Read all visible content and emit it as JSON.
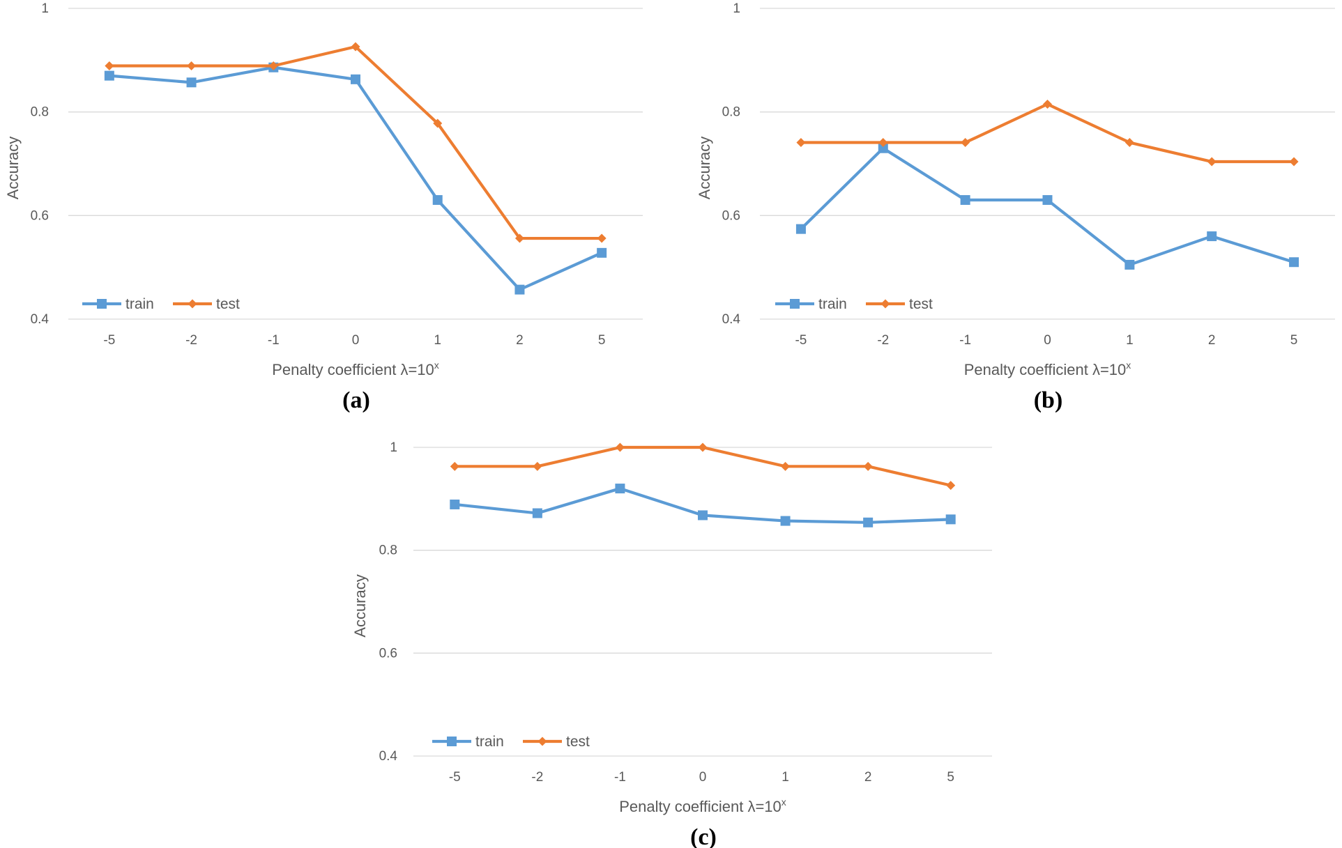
{
  "chart_data": [
    {
      "type": "line",
      "panel_label": "(a)",
      "xlabel": "Penalty coefficient λ=10",
      "xlabel_sup": "x",
      "ylabel": "Accuracy",
      "categories": [
        "-5",
        "-2",
        "-1",
        "0",
        "1",
        "2",
        "5"
      ],
      "ylim": [
        0.4,
        1
      ],
      "yticks": [
        "0.4",
        "0.6",
        "0.8",
        "1"
      ],
      "grid": true,
      "legend_position": "bottom-left",
      "series": [
        {
          "name": "train",
          "color": "#5b9bd5",
          "marker": "square",
          "values": [
            0.87,
            0.857,
            0.886,
            0.863,
            0.63,
            0.457,
            0.528
          ]
        },
        {
          "name": "test",
          "color": "#ed7d31",
          "marker": "diamond",
          "values": [
            0.889,
            0.889,
            0.889,
            0.926,
            0.778,
            0.556,
            0.556
          ]
        }
      ]
    },
    {
      "type": "line",
      "panel_label": "(b)",
      "xlabel": "Penalty coefficient λ=10",
      "xlabel_sup": "x",
      "ylabel": "Accuracy",
      "categories": [
        "-5",
        "-2",
        "-1",
        "0",
        "1",
        "2",
        "5"
      ],
      "ylim": [
        0.4,
        1
      ],
      "yticks": [
        "0.4",
        "0.6",
        "0.8",
        "1"
      ],
      "grid": true,
      "legend_position": "bottom-left",
      "series": [
        {
          "name": "train",
          "color": "#5b9bd5",
          "marker": "square",
          "values": [
            0.574,
            0.73,
            0.63,
            0.63,
            0.505,
            0.56,
            0.51
          ]
        },
        {
          "name": "test",
          "color": "#ed7d31",
          "marker": "diamond",
          "values": [
            0.741,
            0.741,
            0.741,
            0.815,
            0.741,
            0.704,
            0.704
          ]
        }
      ]
    },
    {
      "type": "line",
      "panel_label": "(c)",
      "xlabel": "Penalty coefficient λ=10",
      "xlabel_sup": "x",
      "ylabel": "Accuracy",
      "categories": [
        "-5",
        "-2",
        "-1",
        "0",
        "1",
        "2",
        "5"
      ],
      "ylim": [
        0.4,
        1
      ],
      "yticks": [
        "0.4",
        "0.6",
        "0.8",
        "1"
      ],
      "grid": true,
      "legend_position": "bottom-left",
      "series": [
        {
          "name": "train",
          "color": "#5b9bd5",
          "marker": "square",
          "values": [
            0.889,
            0.872,
            0.92,
            0.868,
            0.857,
            0.854,
            0.86
          ]
        },
        {
          "name": "test",
          "color": "#ed7d31",
          "marker": "diamond",
          "values": [
            0.963,
            0.963,
            1.0,
            1.0,
            0.963,
            0.963,
            0.926
          ]
        }
      ]
    }
  ]
}
